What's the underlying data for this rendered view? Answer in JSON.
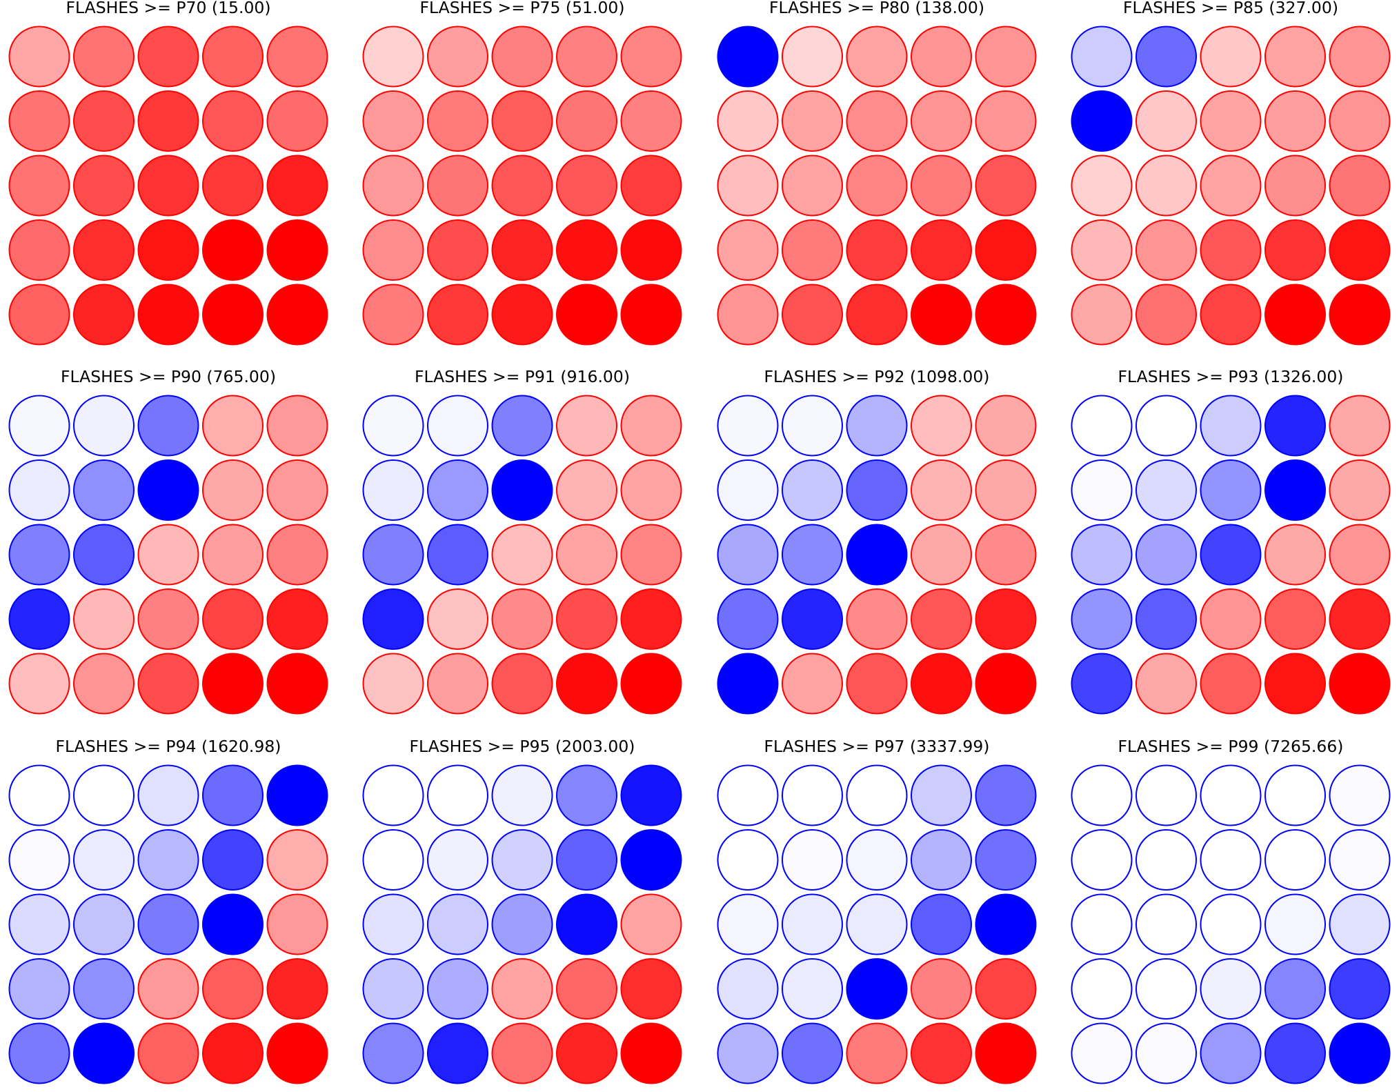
{
  "chart_data": {
    "type": "heatmap",
    "rows": 5,
    "cols": 5,
    "colors": {
      "positive": "#ff0000",
      "negative": "#0000ff",
      "neutral": "#ffffff"
    },
    "panels": [
      {
        "title": "FLASHES >= P70 (15.00)",
        "values": [
          [
            0.35,
            0.55,
            0.7,
            0.62,
            0.55
          ],
          [
            0.55,
            0.7,
            0.78,
            0.66,
            0.58
          ],
          [
            0.55,
            0.7,
            0.8,
            0.78,
            0.88
          ],
          [
            0.58,
            0.82,
            0.92,
            1.0,
            1.0
          ],
          [
            0.62,
            0.86,
            0.96,
            1.0,
            1.0
          ]
        ]
      },
      {
        "title": "FLASHES >= P75 (51.00)",
        "values": [
          [
            0.18,
            0.38,
            0.5,
            0.5,
            0.48
          ],
          [
            0.4,
            0.52,
            0.64,
            0.54,
            0.5
          ],
          [
            0.4,
            0.54,
            0.66,
            0.66,
            0.76
          ],
          [
            0.45,
            0.7,
            0.86,
            0.94,
            0.96
          ],
          [
            0.52,
            0.78,
            0.9,
            1.0,
            1.0
          ]
        ]
      },
      {
        "title": "FLASHES >= P80 (138.00)",
        "values": [
          [
            -1.0,
            0.16,
            0.36,
            0.42,
            0.42
          ],
          [
            0.22,
            0.36,
            0.45,
            0.42,
            0.42
          ],
          [
            0.26,
            0.36,
            0.48,
            0.52,
            0.66
          ],
          [
            0.36,
            0.52,
            0.76,
            0.84,
            0.92
          ],
          [
            0.42,
            0.68,
            0.82,
            1.0,
            1.0
          ]
        ]
      },
      {
        "title": "FLASHES >= P85 (327.00)",
        "values": [
          [
            -0.2,
            -0.58,
            0.22,
            0.36,
            0.42
          ],
          [
            -1.0,
            0.22,
            0.36,
            0.38,
            0.42
          ],
          [
            0.18,
            0.22,
            0.36,
            0.44,
            0.54
          ],
          [
            0.28,
            0.42,
            0.66,
            0.8,
            0.92
          ],
          [
            0.34,
            0.56,
            0.74,
            1.0,
            1.0
          ]
        ]
      },
      {
        "title": "FLASHES >= P90 (765.00)",
        "values": [
          [
            -0.03,
            -0.06,
            -0.54,
            0.32,
            0.4
          ],
          [
            -0.08,
            -0.44,
            -1.0,
            0.34,
            0.4
          ],
          [
            -0.5,
            -0.64,
            0.28,
            0.38,
            0.5
          ],
          [
            -0.86,
            0.28,
            0.5,
            0.74,
            0.88
          ],
          [
            0.26,
            0.42,
            0.7,
            1.0,
            1.0
          ]
        ]
      },
      {
        "title": "FLASHES >= P91 (916.00)",
        "values": [
          [
            -0.03,
            -0.04,
            -0.5,
            0.28,
            0.36
          ],
          [
            -0.08,
            -0.4,
            -1.0,
            0.3,
            0.36
          ],
          [
            -0.5,
            -0.64,
            0.26,
            0.36,
            0.48
          ],
          [
            -0.88,
            0.24,
            0.46,
            0.7,
            0.88
          ],
          [
            0.24,
            0.38,
            0.66,
            0.96,
            1.0
          ]
        ]
      },
      {
        "title": "FLASHES >= P92 (1098.00)",
        "values": [
          [
            -0.03,
            -0.03,
            -0.3,
            0.26,
            0.34
          ],
          [
            -0.04,
            -0.22,
            -0.6,
            0.3,
            0.34
          ],
          [
            -0.34,
            -0.46,
            -1.0,
            0.34,
            0.46
          ],
          [
            -0.56,
            -0.86,
            0.46,
            0.66,
            0.88
          ],
          [
            -1.0,
            0.36,
            0.66,
            0.94,
            1.0
          ]
        ]
      },
      {
        "title": "FLASHES >= P93 (1326.00)",
        "values": [
          [
            0.0,
            0.0,
            -0.2,
            -0.86,
            0.34
          ],
          [
            -0.02,
            -0.14,
            -0.42,
            -1.0,
            0.34
          ],
          [
            -0.26,
            -0.36,
            -0.74,
            0.34,
            0.42
          ],
          [
            -0.42,
            -0.64,
            0.42,
            0.64,
            0.86
          ],
          [
            -0.74,
            0.34,
            0.64,
            0.92,
            1.0
          ]
        ]
      },
      {
        "title": "FLASHES >= P94 (1620.98)",
        "values": [
          [
            0.0,
            0.0,
            -0.12,
            -0.58,
            -1.0
          ],
          [
            -0.02,
            -0.08,
            -0.28,
            -0.74,
            0.32
          ],
          [
            -0.14,
            -0.24,
            -0.52,
            -1.0,
            0.4
          ],
          [
            -0.3,
            -0.44,
            0.4,
            0.64,
            0.86
          ],
          [
            -0.52,
            -1.0,
            0.62,
            0.9,
            1.0
          ]
        ]
      },
      {
        "title": "FLASHES >= P95 (2003.00)",
        "values": [
          [
            0.0,
            0.0,
            -0.06,
            -0.48,
            -0.92
          ],
          [
            0.0,
            -0.06,
            -0.18,
            -0.62,
            -1.0
          ],
          [
            -0.12,
            -0.2,
            -0.38,
            -0.96,
            0.36
          ],
          [
            -0.22,
            -0.32,
            0.36,
            0.6,
            0.82
          ],
          [
            -0.48,
            -0.88,
            0.56,
            0.86,
            1.0
          ]
        ]
      },
      {
        "title": "FLASHES >= P97 (3337.99)",
        "values": [
          [
            0.0,
            0.0,
            0.0,
            -0.2,
            -0.56
          ],
          [
            0.0,
            -0.02,
            -0.04,
            -0.3,
            -0.56
          ],
          [
            -0.04,
            -0.08,
            -0.08,
            -0.64,
            -1.0
          ],
          [
            -0.12,
            -0.08,
            -1.0,
            0.5,
            0.74
          ],
          [
            -0.3,
            -0.56,
            0.52,
            0.8,
            1.0
          ]
        ]
      },
      {
        "title": "FLASHES >= P99 (7265.66)",
        "values": [
          [
            0.0,
            0.0,
            0.0,
            0.0,
            -0.02
          ],
          [
            0.0,
            0.0,
            0.0,
            0.0,
            -0.02
          ],
          [
            0.0,
            0.0,
            0.0,
            -0.04,
            -0.12
          ],
          [
            0.0,
            0.0,
            -0.06,
            -0.48,
            -0.76
          ],
          [
            -0.02,
            -0.02,
            -0.4,
            -0.74,
            -1.0
          ]
        ]
      }
    ]
  }
}
